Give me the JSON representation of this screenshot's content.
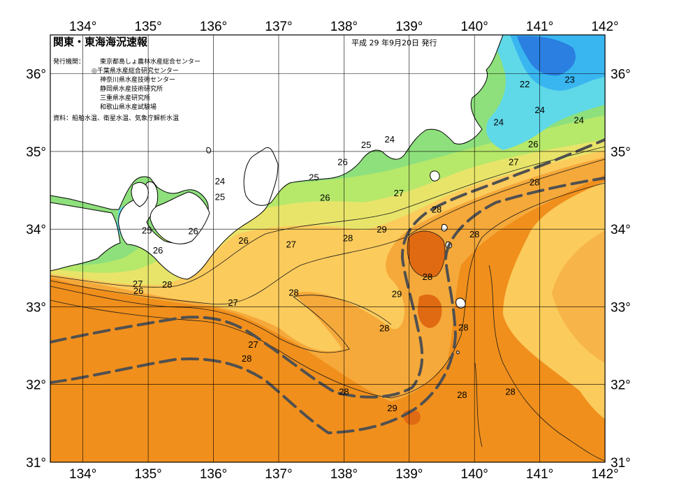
{
  "header": {
    "title": "関東・東海海況速報",
    "issue_date": "平成 29 年9月20日 発行",
    "issuers_label": "発行機関：",
    "issuers": [
      "東京都島しょ農林水産総合センター",
      "◎千葉県水産総合研究センター",
      "神奈川県水産技術センター",
      "静岡県水産技術研究所",
      "三重県水産研究所",
      "和歌山県水産試験場"
    ],
    "source": "資料：船舶水温、衛星水温、気象庁解析水温"
  },
  "axes": {
    "lon_ticks": [
      "134°",
      "135°",
      "136°",
      "137°",
      "138°",
      "139°",
      "140°",
      "141°",
      "142°"
    ],
    "lat_ticks": [
      "36°",
      "35°",
      "34°",
      "33°",
      "32°",
      "31°"
    ]
  },
  "contour_labels": [
    {
      "text": "22",
      "lon": 140.77,
      "lat": 35.87
    },
    {
      "text": "23",
      "lon": 141.46,
      "lat": 35.93
    },
    {
      "text": "24",
      "lon": 140.37,
      "lat": 35.38
    },
    {
      "text": "24",
      "lon": 141.0,
      "lat": 35.54
    },
    {
      "text": "24",
      "lon": 141.6,
      "lat": 35.41
    },
    {
      "text": "24",
      "lon": 138.7,
      "lat": 35.16
    },
    {
      "text": "25",
      "lon": 138.34,
      "lat": 35.09
    },
    {
      "text": "26",
      "lon": 140.9,
      "lat": 35.1
    },
    {
      "text": "27",
      "lon": 140.6,
      "lat": 34.87
    },
    {
      "text": "28",
      "lon": 140.92,
      "lat": 34.61
    },
    {
      "text": "24",
      "lon": 136.1,
      "lat": 34.62
    },
    {
      "text": "25",
      "lon": 136.1,
      "lat": 34.42
    },
    {
      "text": "25",
      "lon": 137.54,
      "lat": 34.67
    },
    {
      "text": "26",
      "lon": 137.98,
      "lat": 34.87
    },
    {
      "text": "26",
      "lon": 137.71,
      "lat": 34.41
    },
    {
      "text": "27",
      "lon": 138.84,
      "lat": 34.47
    },
    {
      "text": "28",
      "lon": 139.42,
      "lat": 34.26
    },
    {
      "text": "29",
      "lon": 138.58,
      "lat": 34.0
    },
    {
      "text": "28",
      "lon": 138.06,
      "lat": 33.89
    },
    {
      "text": "28",
      "lon": 140.0,
      "lat": 33.94
    },
    {
      "text": "26",
      "lon": 135.69,
      "lat": 33.98
    },
    {
      "text": "26",
      "lon": 136.46,
      "lat": 33.86
    },
    {
      "text": "27",
      "lon": 137.19,
      "lat": 33.81
    },
    {
      "text": "25",
      "lon": 134.98,
      "lat": 33.99
    },
    {
      "text": "26",
      "lon": 135.15,
      "lat": 33.73
    },
    {
      "text": "27",
      "lon": 134.84,
      "lat": 33.3
    },
    {
      "text": "26",
      "lon": 134.85,
      "lat": 33.21
    },
    {
      "text": "28",
      "lon": 135.29,
      "lat": 33.29
    },
    {
      "text": "28",
      "lon": 137.23,
      "lat": 33.19
    },
    {
      "text": "29",
      "lon": 138.81,
      "lat": 33.17
    },
    {
      "text": "28",
      "lon": 139.28,
      "lat": 33.39
    },
    {
      "text": "27",
      "lon": 136.3,
      "lat": 33.06
    },
    {
      "text": "28",
      "lon": 138.62,
      "lat": 32.73
    },
    {
      "text": "28",
      "lon": 139.83,
      "lat": 32.74
    },
    {
      "text": "27",
      "lon": 136.61,
      "lat": 32.52
    },
    {
      "text": "28",
      "lon": 136.51,
      "lat": 32.34
    },
    {
      "text": "28",
      "lon": 138.0,
      "lat": 31.91
    },
    {
      "text": "28",
      "lon": 139.81,
      "lat": 31.87
    },
    {
      "text": "28",
      "lon": 140.55,
      "lat": 31.91
    },
    {
      "text": "29",
      "lon": 138.74,
      "lat": 31.7
    }
  ]
}
